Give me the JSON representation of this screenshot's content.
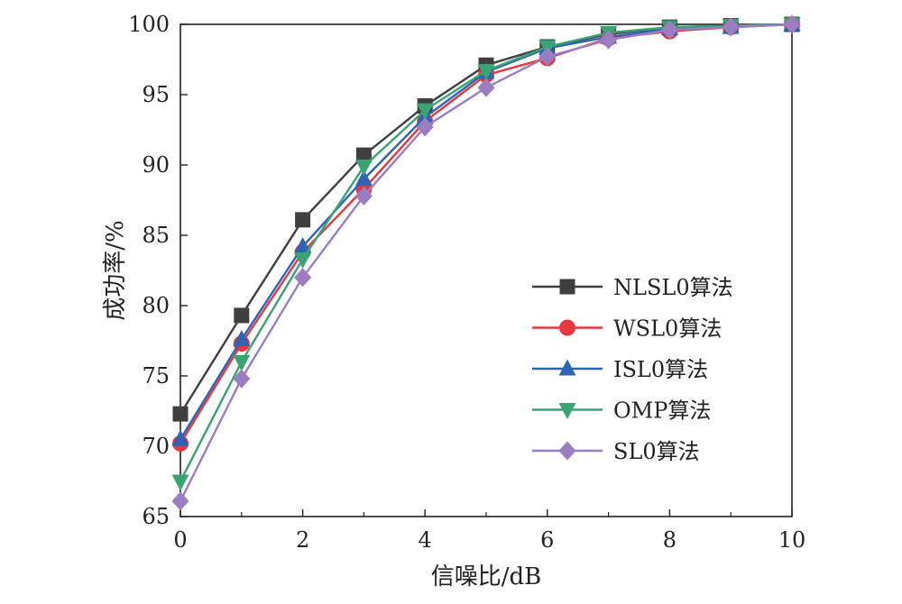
{
  "chart_data": {
    "type": "line",
    "xlabel": "信噪比/dB",
    "ylabel": "成功率/%",
    "xlim": [
      0,
      10
    ],
    "ylim": [
      65,
      100
    ],
    "xticks": [
      "0",
      "2",
      "4",
      "6",
      "8",
      "10"
    ],
    "yticks": [
      "65",
      "70",
      "75",
      "80",
      "85",
      "90",
      "95",
      "100"
    ],
    "grid": false,
    "legend_position": "right",
    "x": [
      0,
      1,
      2,
      3,
      4,
      5,
      6,
      7,
      8,
      9,
      10
    ],
    "series": [
      {
        "name": "NLSL0算法",
        "marker": "square",
        "color": "#3f3f3f",
        "values": [
          72.3,
          79.3,
          86.1,
          90.7,
          94.2,
          97.1,
          98.4,
          99.3,
          99.8,
          99.9,
          100
        ]
      },
      {
        "name": "WSL0算法",
        "marker": "circle",
        "color": "#e8373e",
        "values": [
          70.2,
          77.3,
          83.8,
          88.3,
          93.1,
          96.4,
          97.6,
          99.0,
          99.5,
          99.8,
          100
        ]
      },
      {
        "name": "ISL0算法",
        "marker": "triangle-up",
        "color": "#2d64b4",
        "values": [
          70.5,
          77.6,
          84.2,
          89.0,
          93.4,
          96.6,
          98.3,
          99.1,
          99.7,
          99.8,
          100
        ]
      },
      {
        "name": "OMP算法",
        "marker": "triangle-down",
        "color": "#3aa374",
        "values": [
          67.5,
          76.0,
          83.3,
          89.9,
          93.9,
          96.7,
          98.4,
          99.4,
          99.8,
          99.9,
          100
        ]
      },
      {
        "name": "SL0算法",
        "marker": "diamond",
        "color": "#9b7ec2",
        "values": [
          66.1,
          74.8,
          82.0,
          87.8,
          92.7,
          95.5,
          97.7,
          98.9,
          99.6,
          99.8,
          100
        ]
      }
    ]
  }
}
